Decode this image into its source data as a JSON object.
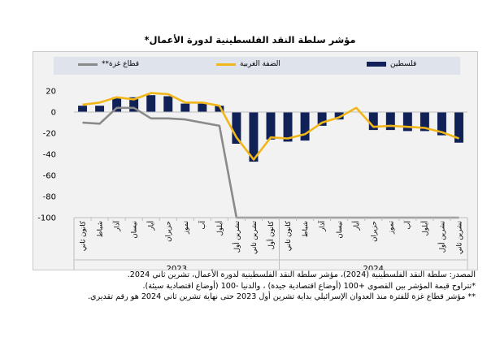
{
  "title": "مؤشر سلطة النقد الفلسطينية لدورة الأعمال*",
  "legend": {
    "palestine": "فلسطين",
    "west_bank": "الضفة الغربية",
    "gaza": "قطاع غزة**"
  },
  "notes": [
    "المصدر: سلطة النقد الفلسطينية (2024)، مؤشر سلطة النقد الفلسطينية لدورة الأعمال، تشرين ثاني 2024.",
    "*تتراوح قيمة المؤشر بين القصوى +100 (أوضاع اقتصادية جيدة) ، والدنيا -100 (أوضاع اقتصادية سيئة).",
    "** مؤشر قطاع غزة للفترة منذ العدوان الإسرائيلي بداية تشرين أول 2023 حتى نهاية تشرين ثاني 2024 هو رقم تقديري."
  ],
  "colors": {
    "palestine": "#102157",
    "west_bank": "#f0b61a",
    "gaza": "#8a8a8a"
  },
  "chart_data": {
    "type": "bar",
    "categories": [
      "كانون ثاني",
      "شباط",
      "آذار",
      "نيسان",
      "أيار",
      "حزيران",
      "تموز",
      "آب",
      "أيلول",
      "تشرين أول",
      "تشرين ثاني",
      "كانون أول",
      "كانون ثاني",
      "شباط",
      "آذار",
      "نيسان",
      "أيار",
      "حزيران",
      "تموز",
      "آب",
      "أيلول",
      "تشرين أول",
      "تشرين ثاني"
    ],
    "year_labels": [
      "2023",
      "2024"
    ],
    "year_spans": [
      [
        0,
        11
      ],
      [
        12,
        22
      ]
    ],
    "y_ticks": [
      20,
      0,
      -20,
      -40,
      -60,
      -80,
      -100
    ],
    "ylim": [
      -100,
      20
    ],
    "series": [
      {
        "name": "فلسطين",
        "kind": "bar",
        "values": [
          6,
          6,
          14,
          14,
          16,
          15,
          8,
          8,
          6,
          -30,
          -47,
          -26,
          -28,
          -27,
          -13,
          -7,
          0,
          -17,
          -17,
          -18,
          -18,
          -22,
          -29
        ]
      },
      {
        "name": "الضفة الغربية",
        "kind": "line",
        "values": [
          7,
          9,
          14,
          12,
          18,
          17,
          9,
          9,
          6,
          -24,
          -45,
          -24,
          -25,
          -21,
          -10,
          -5,
          4,
          -14,
          -13,
          -14,
          -15,
          -19,
          -25
        ]
      },
      {
        "name": "قطاع غزة**",
        "kind": "line",
        "values": [
          -10,
          -11,
          4,
          4,
          -6,
          -6,
          -7,
          -10,
          -13,
          -100,
          -100,
          -100,
          -100,
          -100,
          -100,
          -100,
          -100,
          -100,
          -100,
          -100,
          -100,
          -100,
          -100
        ]
      }
    ],
    "grid": false,
    "legend_position": "top"
  }
}
